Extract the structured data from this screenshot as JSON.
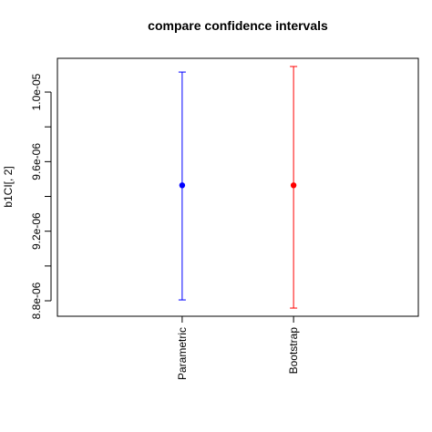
{
  "chart_data": {
    "type": "errorbar",
    "title": "compare confidence intervals",
    "y_label": "b1CI[, 2]",
    "categories": [
      "Parametric",
      "Bootstrap"
    ],
    "values": [
      9.464e-06,
      9.464e-06
    ],
    "lower": [
      8.805e-06,
      8.758e-06
    ],
    "upper": [
      1.0115e-05,
      1.0147e-05
    ],
    "colors": [
      "#0000ff",
      "#ff0000"
    ],
    "ylim": [
      8.711e-06,
      1.0194e-05
    ],
    "yticks": [
      {
        "value": 8.8e-06,
        "label": "8.8e-06"
      },
      {
        "value": 9e-06,
        "label": null
      },
      {
        "value": 9.2e-06,
        "label": "9.2e-06"
      },
      {
        "value": 9.4e-06,
        "label": null
      },
      {
        "value": 9.6e-06,
        "label": "9.6e-06"
      },
      {
        "value": 9.8e-06,
        "label": null
      },
      {
        "value": 1e-05,
        "label": "1.0e-05"
      }
    ]
  }
}
